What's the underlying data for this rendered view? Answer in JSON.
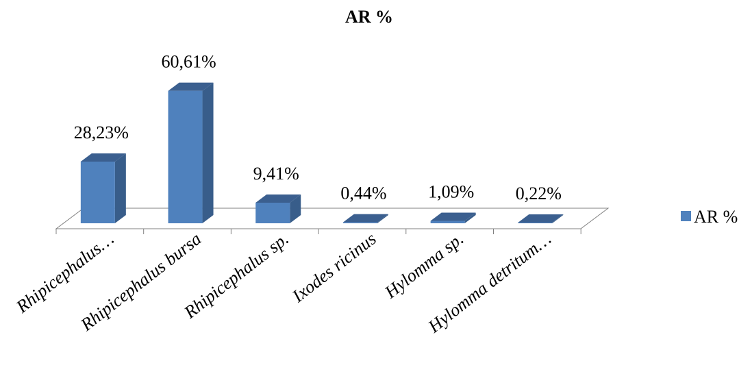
{
  "chart_data": {
    "type": "bar",
    "title": "AR %",
    "categories": [
      "Rhipicephalus…",
      "Rhipicephalus bursa",
      "Rhipicephalus sp.",
      "Ixodes ricinus",
      "Hylomma sp.",
      "Hylomma detritum…"
    ],
    "series": [
      {
        "name": "AR %",
        "values": [
          28.23,
          60.61,
          9.41,
          0.44,
          1.09,
          0.22
        ],
        "labels": [
          "28,23%",
          "60,61%",
          "9,41%",
          "0,44%",
          "1,09%",
          "0,22%"
        ]
      }
    ],
    "xlabel": "",
    "ylabel": "",
    "grid": false,
    "legend": "right",
    "three_d": true,
    "colors": {
      "bar_front": "#4F81BD",
      "bar_side": "#385D8A",
      "bar_top": "#3B5F8F",
      "floor_line": "#808080"
    }
  }
}
